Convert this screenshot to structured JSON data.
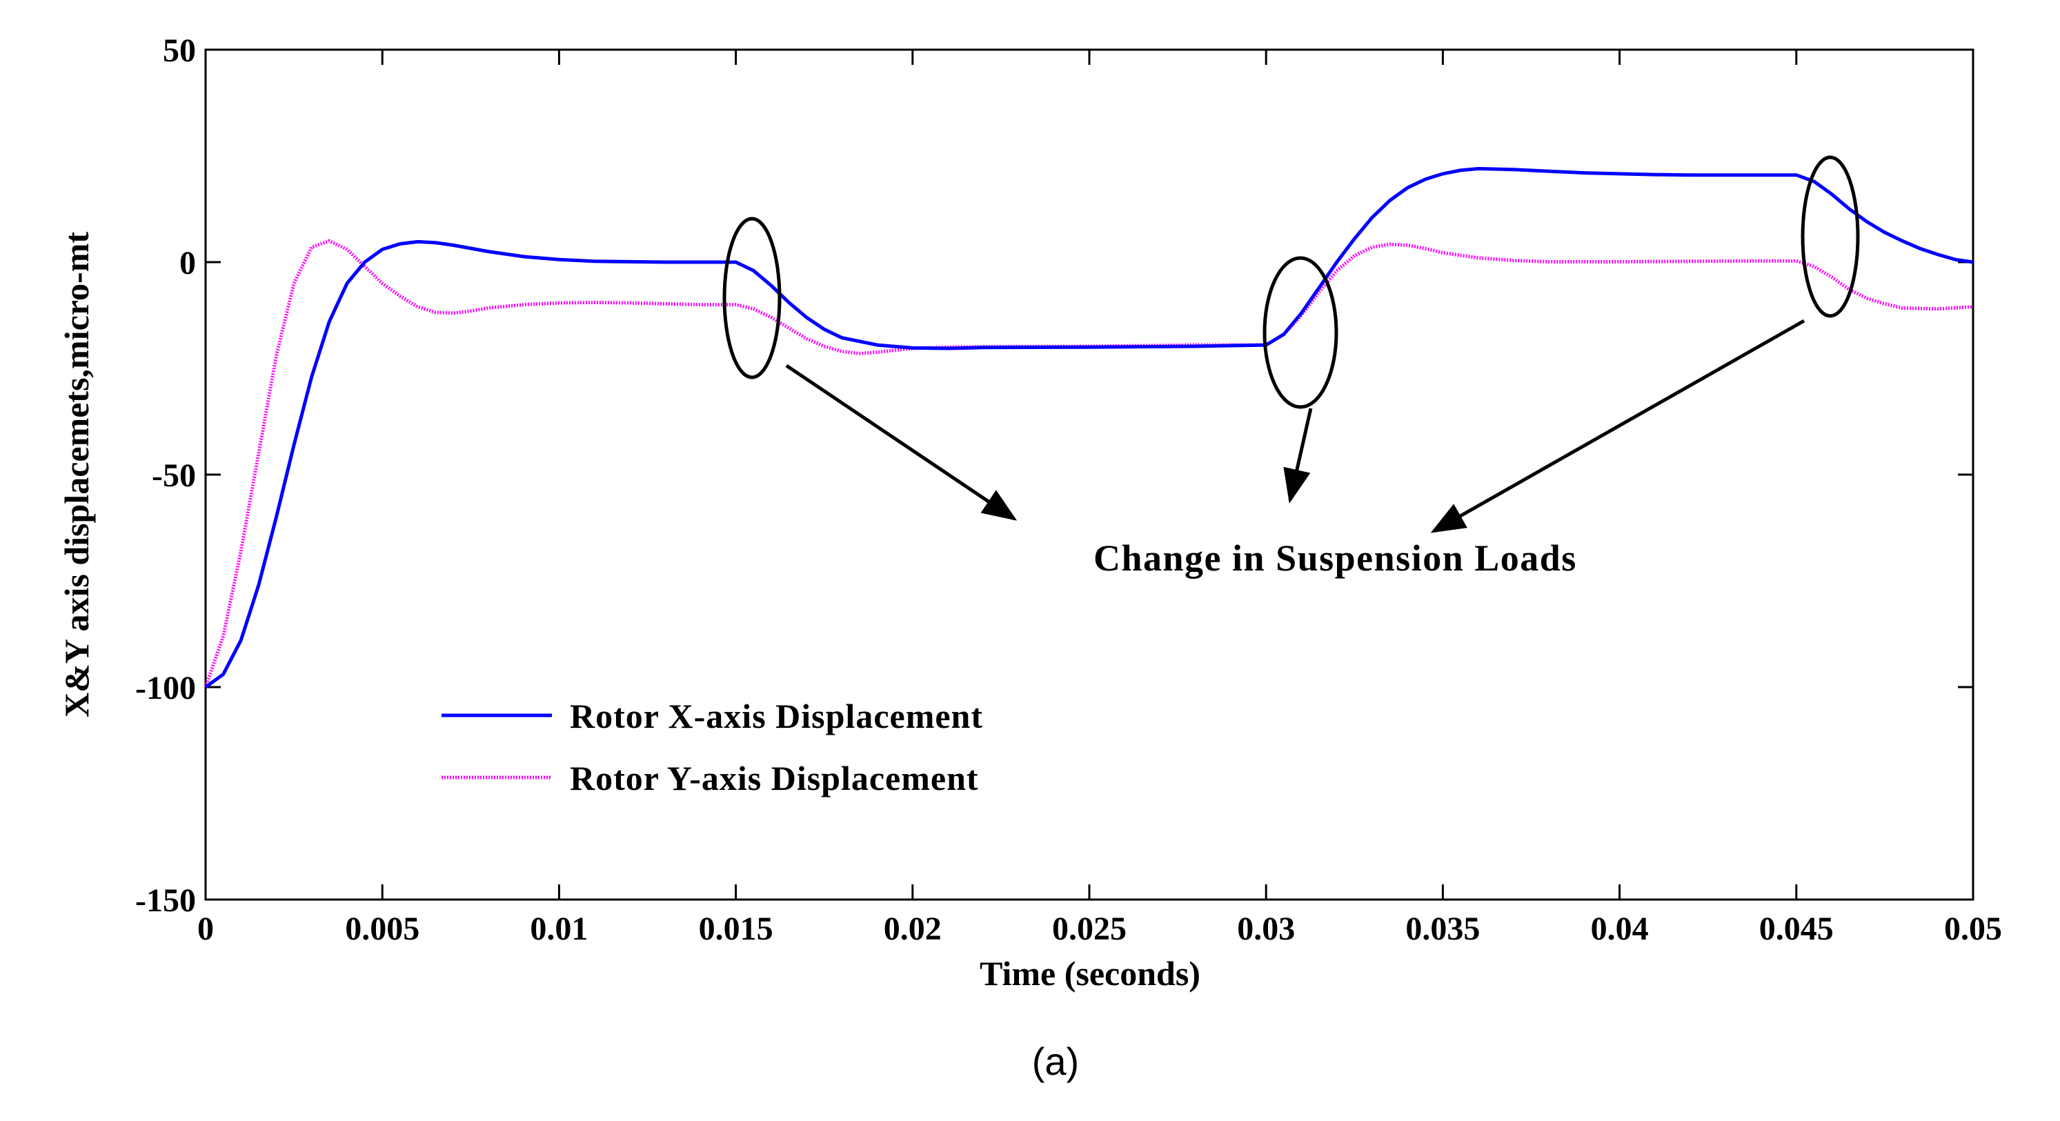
{
  "chart_data": {
    "type": "line",
    "title": "",
    "xlabel": "Time (seconds)",
    "ylabel": "X&Y axis displacemets,micro-mt",
    "xlim": [
      0,
      0.05
    ],
    "ylim": [
      -150,
      50
    ],
    "xticks": [
      0,
      0.005,
      0.01,
      0.015,
      0.02,
      0.025,
      0.03,
      0.035,
      0.04,
      0.045,
      0.05
    ],
    "xtick_labels": [
      "0",
      "0.005",
      "0.01",
      "0.015",
      "0.02",
      "0.025",
      "0.03",
      "0.035",
      "0.04",
      "0.045",
      "0.05"
    ],
    "yticks": [
      -150,
      -100,
      -50,
      0,
      50
    ],
    "ytick_labels": [
      "-150",
      "-100",
      "-50",
      "0",
      "50"
    ],
    "grid": false,
    "legend_position": "lower-left",
    "series": [
      {
        "name": "Rotor X-axis Displacement",
        "color": "#0000ff",
        "style": "solid",
        "x": [
          0,
          0.0005,
          0.001,
          0.0015,
          0.002,
          0.0025,
          0.003,
          0.0035,
          0.004,
          0.0045,
          0.005,
          0.0055,
          0.006,
          0.0065,
          0.007,
          0.008,
          0.009,
          0.01,
          0.011,
          0.012,
          0.013,
          0.014,
          0.015,
          0.0155,
          0.016,
          0.0165,
          0.017,
          0.0175,
          0.018,
          0.019,
          0.02,
          0.021,
          0.022,
          0.025,
          0.028,
          0.03,
          0.0305,
          0.031,
          0.0315,
          0.032,
          0.0325,
          0.033,
          0.0335,
          0.034,
          0.0345,
          0.035,
          0.0355,
          0.036,
          0.037,
          0.038,
          0.039,
          0.04,
          0.041,
          0.042,
          0.043,
          0.044,
          0.045,
          0.0455,
          0.046,
          0.0465,
          0.047,
          0.0475,
          0.048,
          0.0485,
          0.049,
          0.0495,
          0.05
        ],
        "values": [
          -100,
          -97,
          -89,
          -76,
          -60,
          -43,
          -27,
          -14,
          -5,
          0,
          3,
          4.3,
          4.8,
          4.6,
          4,
          2.5,
          1.3,
          0.6,
          0.2,
          0.1,
          0,
          0,
          0,
          -2,
          -5.5,
          -9.5,
          -13,
          -15.8,
          -17.8,
          -19.5,
          -20.2,
          -20.3,
          -20.1,
          -20,
          -19.8,
          -19.5,
          -17,
          -12,
          -6,
          0,
          5.5,
          10.5,
          14.5,
          17.5,
          19.5,
          20.8,
          21.6,
          22,
          21.8,
          21.4,
          21,
          20.8,
          20.6,
          20.5,
          20.5,
          20.5,
          20.5,
          19,
          16,
          12.5,
          9.5,
          7,
          5,
          3.2,
          1.8,
          0.6,
          0
        ]
      },
      {
        "name": "Rotor Y-axis Displacement",
        "color": "#ff00ff",
        "style": "dotted",
        "x": [
          0,
          0.0005,
          0.001,
          0.0015,
          0.002,
          0.0025,
          0.003,
          0.0035,
          0.004,
          0.0045,
          0.005,
          0.0055,
          0.006,
          0.0065,
          0.007,
          0.0075,
          0.008,
          0.009,
          0.01,
          0.011,
          0.012,
          0.013,
          0.014,
          0.015,
          0.0155,
          0.016,
          0.0165,
          0.017,
          0.0175,
          0.018,
          0.0185,
          0.019,
          0.02,
          0.021,
          0.022,
          0.025,
          0.028,
          0.03,
          0.0305,
          0.031,
          0.0315,
          0.032,
          0.0325,
          0.033,
          0.0335,
          0.034,
          0.0345,
          0.035,
          0.036,
          0.037,
          0.038,
          0.04,
          0.042,
          0.044,
          0.045,
          0.0455,
          0.046,
          0.0465,
          0.047,
          0.0475,
          0.048,
          0.049,
          0.05
        ],
        "values": [
          -100,
          -88,
          -68,
          -45,
          -22,
          -5,
          3.5,
          5,
          3,
          -1,
          -5,
          -8,
          -10.5,
          -11.8,
          -12,
          -11.5,
          -10.8,
          -10,
          -9.6,
          -9.5,
          -9.6,
          -9.8,
          -10,
          -10,
          -11,
          -13,
          -15.5,
          -18,
          -19.8,
          -21,
          -21.5,
          -21.2,
          -20.3,
          -20,
          -19.9,
          -19.8,
          -19.5,
          -19.5,
          -17,
          -12.5,
          -7,
          -2,
          1.5,
          3.5,
          4.2,
          4,
          3.2,
          2.2,
          1,
          0.4,
          0.1,
          0.1,
          0.2,
          0.3,
          0.3,
          -1,
          -3.5,
          -6.5,
          -8.5,
          -9.8,
          -10.8,
          -11,
          -10.5
        ]
      }
    ],
    "annotations": [
      {
        "text": "Change in Suspension Loads"
      }
    ]
  },
  "caption": "(a)",
  "legend_sample_colors": {
    "x": "#0000ff",
    "y": "#ff00ff"
  }
}
